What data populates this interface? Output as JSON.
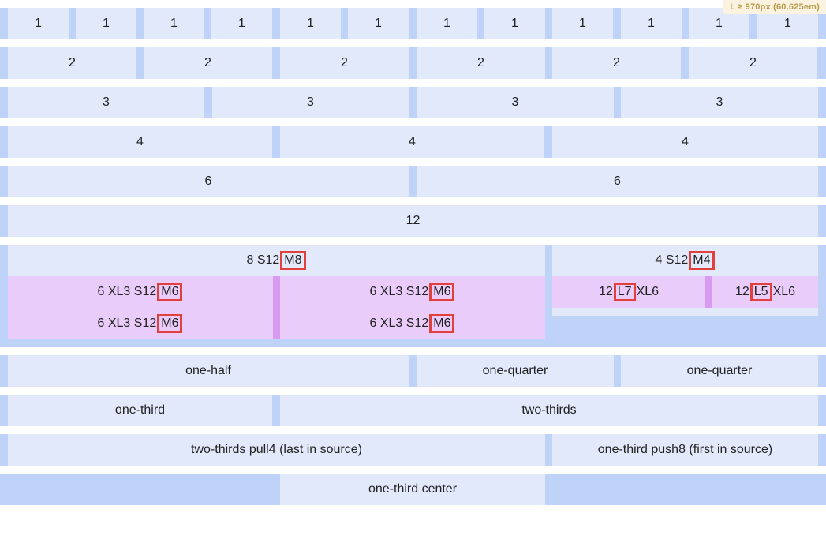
{
  "breakpoint": "L ≥ 970px (60.625em)",
  "rows": {
    "r1": [
      "1",
      "1",
      "1",
      "1",
      "1",
      "1",
      "1",
      "1",
      "1",
      "1",
      "1",
      "1"
    ],
    "r2": [
      "2",
      "2",
      "2",
      "2",
      "2",
      "2"
    ],
    "r3": [
      "3",
      "3",
      "3",
      "3"
    ],
    "r4": [
      "4",
      "4",
      "4"
    ],
    "r6": [
      "6",
      "6"
    ],
    "r12": [
      "12"
    ]
  },
  "nested": {
    "left_prefix": "8 S12",
    "left_tag": "M8",
    "right_prefix": "4 S12",
    "right_tag": "M4",
    "inner_prefix": "6 XL3 S12",
    "inner_tag": "M6",
    "l7": {
      "prefix": "12",
      "tag": "L7",
      "suffix": "XL6"
    },
    "l5": {
      "prefix": "12",
      "tag": "L5",
      "suffix": "XL6"
    }
  },
  "named": {
    "one_half": "one-half",
    "one_quarter": "one-quarter",
    "one_third": "one-third",
    "two_thirds": "two-thirds",
    "pull": "two-thirds pull4 (last in source)",
    "push": "one-third push8 (first in source)",
    "center": "one-third center"
  }
}
